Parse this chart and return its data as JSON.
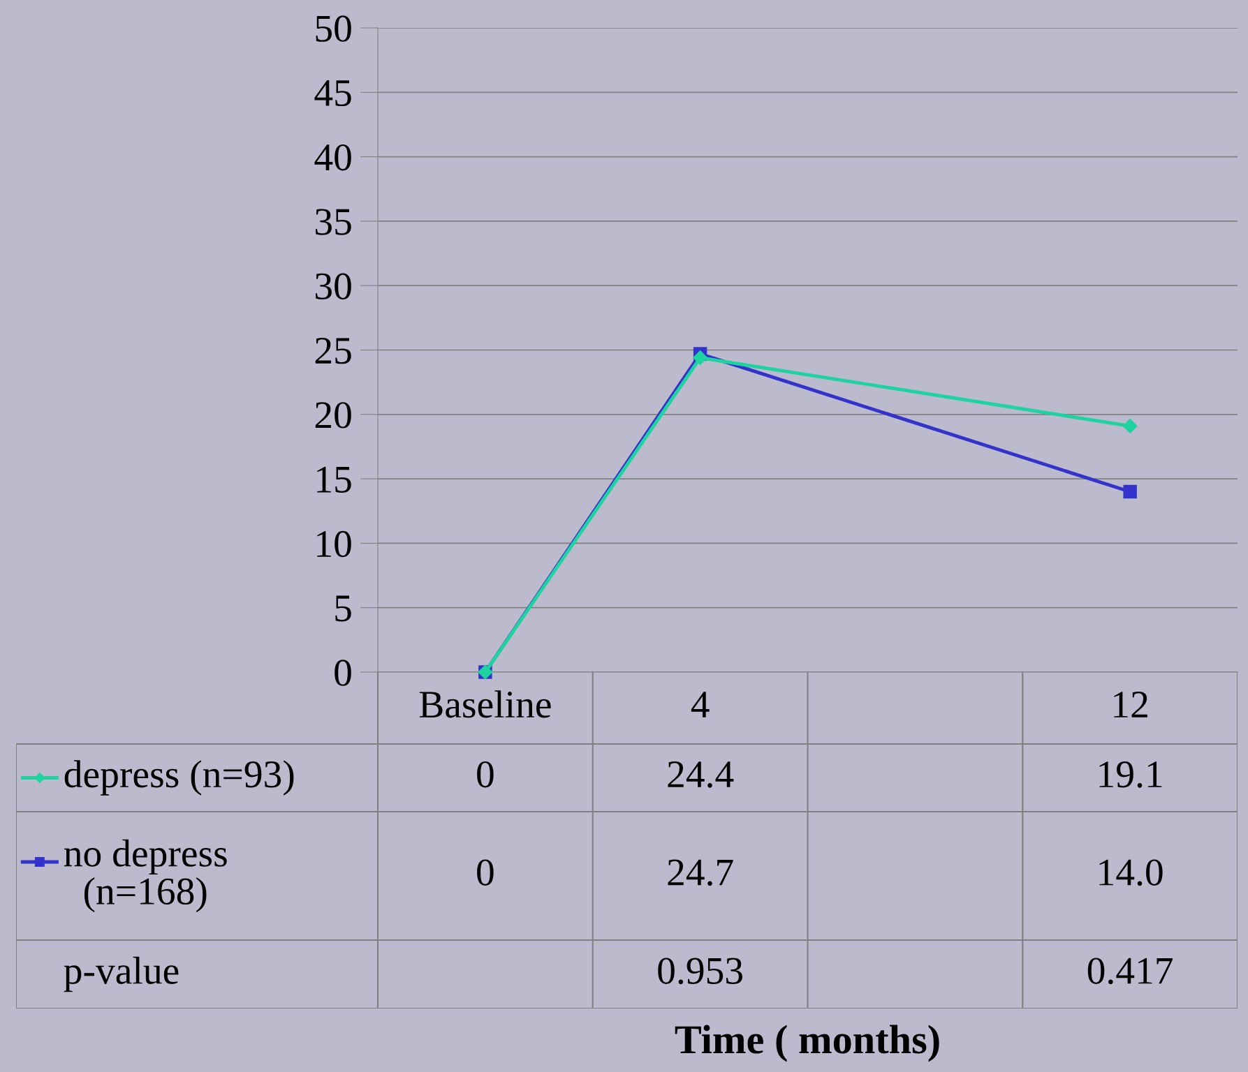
{
  "chart_data": {
    "type": "line",
    "categories": [
      "Baseline",
      "4",
      null,
      "12"
    ],
    "series": [
      {
        "name": "depress (n=93)",
        "color": "#1fd3a0",
        "marker": "diamond",
        "values": [
          0,
          24.4,
          null,
          19.1
        ],
        "value_labels": [
          "0",
          "24.4",
          null,
          "19.1"
        ]
      },
      {
        "name": "no depress (n=168)",
        "color": "#3333cc",
        "marker": "square",
        "values": [
          0,
          24.7,
          null,
          14.0
        ],
        "value_labels": [
          "0",
          "24.7",
          null,
          "14.0"
        ]
      }
    ],
    "annotations": [
      "p-value",
      "0.953",
      "0.417",
      "Time ( months)"
    ],
    "ylim": [
      0,
      50
    ],
    "yticks": [
      0,
      5,
      10,
      15,
      20,
      25,
      30,
      35,
      40,
      45,
      50
    ],
    "grid": "y",
    "legend": "bottom left",
    "line_style": "solid"
  }
}
